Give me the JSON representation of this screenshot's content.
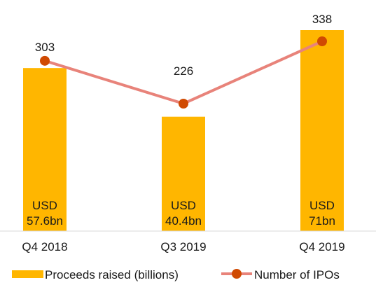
{
  "chart_data": {
    "type": "bar",
    "categories": [
      "Q4 2018",
      "Q3 2019",
      "Q4 2019"
    ],
    "series": [
      {
        "name": "Proceeds raised (billions)",
        "kind": "bar",
        "values": [
          57.6,
          40.4,
          71
        ],
        "labels": [
          [
            "USD",
            "57.6bn"
          ],
          [
            "USD",
            "40.4bn"
          ],
          [
            "USD",
            "71bn"
          ]
        ],
        "color": "#FFB600"
      },
      {
        "name": "Number of IPOs",
        "kind": "line",
        "values": [
          303,
          226,
          338
        ],
        "labels": [
          "303",
          "226",
          "338"
        ],
        "line_color": "#E8837A",
        "marker_color": "#D04A02"
      }
    ],
    "legend": "bottom"
  }
}
